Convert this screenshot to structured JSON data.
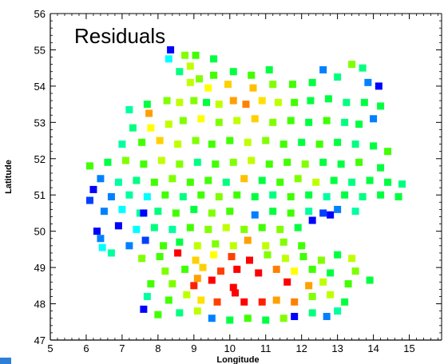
{
  "chart_data": {
    "type": "scatter",
    "title": "Residuals",
    "xlabel": "Longitude",
    "ylabel": "Latitude",
    "xlim": [
      5,
      15.9
    ],
    "ylim": [
      47,
      56
    ],
    "xticks": [
      5,
      6,
      7,
      8,
      9,
      10,
      11,
      12,
      13,
      14,
      15
    ],
    "yticks": [
      47,
      48,
      49,
      50,
      51,
      52,
      53,
      54,
      55,
      56
    ],
    "marker": "square",
    "colormap": "jet (blue = low, red = high)",
    "grid": false,
    "points": [
      {
        "x": 8.35,
        "y": 55.0,
        "color": "#0000ff"
      },
      {
        "x": 8.3,
        "y": 54.75,
        "color": "#00ffff"
      },
      {
        "x": 8.75,
        "y": 54.85,
        "color": "#80ff00"
      },
      {
        "x": 9.05,
        "y": 54.85,
        "color": "#40ff00"
      },
      {
        "x": 9.55,
        "y": 54.75,
        "color": "#00ff40"
      },
      {
        "x": 8.9,
        "y": 54.55,
        "color": "#c0ff00"
      },
      {
        "x": 8.6,
        "y": 54.4,
        "color": "#00ff80"
      },
      {
        "x": 9.15,
        "y": 54.2,
        "color": "#80ff00"
      },
      {
        "x": 9.55,
        "y": 54.3,
        "color": "#40ff00"
      },
      {
        "x": 10.1,
        "y": 54.4,
        "color": "#00ff40"
      },
      {
        "x": 10.6,
        "y": 54.3,
        "color": "#40ff00"
      },
      {
        "x": 11.1,
        "y": 54.45,
        "color": "#00ff40"
      },
      {
        "x": 8.9,
        "y": 54.1,
        "color": "#c0ff00"
      },
      {
        "x": 9.4,
        "y": 53.95,
        "color": "#ffff00"
      },
      {
        "x": 9.95,
        "y": 54.05,
        "color": "#ffd000"
      },
      {
        "x": 10.65,
        "y": 53.95,
        "color": "#ffc000"
      },
      {
        "x": 11.2,
        "y": 54.05,
        "color": "#80ff00"
      },
      {
        "x": 11.75,
        "y": 54.05,
        "color": "#40ff00"
      },
      {
        "x": 12.3,
        "y": 54.1,
        "color": "#00ff40"
      },
      {
        "x": 12.6,
        "y": 54.45,
        "color": "#0080ff"
      },
      {
        "x": 13.0,
        "y": 54.25,
        "color": "#00ff80"
      },
      {
        "x": 13.4,
        "y": 54.6,
        "color": "#80ff00"
      },
      {
        "x": 13.7,
        "y": 54.5,
        "color": "#00ff80"
      },
      {
        "x": 13.85,
        "y": 54.1,
        "color": "#0080ff"
      },
      {
        "x": 14.15,
        "y": 54.0,
        "color": "#0000ff"
      },
      {
        "x": 7.7,
        "y": 53.5,
        "color": "#00ff40"
      },
      {
        "x": 7.2,
        "y": 53.35,
        "color": "#00ffa0"
      },
      {
        "x": 7.75,
        "y": 53.25,
        "color": "#ffa000"
      },
      {
        "x": 8.25,
        "y": 53.6,
        "color": "#80ff00"
      },
      {
        "x": 8.6,
        "y": 53.55,
        "color": "#c0ff00"
      },
      {
        "x": 9.0,
        "y": 53.6,
        "color": "#80ff00"
      },
      {
        "x": 9.35,
        "y": 53.55,
        "color": "#00ff40"
      },
      {
        "x": 9.7,
        "y": 53.5,
        "color": "#c0ff00"
      },
      {
        "x": 10.1,
        "y": 53.6,
        "color": "#ffa000"
      },
      {
        "x": 10.45,
        "y": 53.5,
        "color": "#ff8000"
      },
      {
        "x": 10.9,
        "y": 53.6,
        "color": "#ffe000"
      },
      {
        "x": 11.35,
        "y": 53.55,
        "color": "#c0ff00"
      },
      {
        "x": 11.8,
        "y": 53.55,
        "color": "#40ff00"
      },
      {
        "x": 12.25,
        "y": 53.6,
        "color": "#00ff40"
      },
      {
        "x": 12.75,
        "y": 53.65,
        "color": "#00ff40"
      },
      {
        "x": 13.25,
        "y": 53.55,
        "color": "#00ff80"
      },
      {
        "x": 13.75,
        "y": 53.55,
        "color": "#00ff40"
      },
      {
        "x": 14.2,
        "y": 53.45,
        "color": "#00ff40"
      },
      {
        "x": 14.0,
        "y": 53.1,
        "color": "#0080ff"
      },
      {
        "x": 7.3,
        "y": 52.85,
        "color": "#00ff80"
      },
      {
        "x": 7.8,
        "y": 52.85,
        "color": "#ffff00"
      },
      {
        "x": 8.3,
        "y": 52.95,
        "color": "#c0ff00"
      },
      {
        "x": 8.7,
        "y": 53.05,
        "color": "#80ff00"
      },
      {
        "x": 9.2,
        "y": 53.1,
        "color": "#ffff00"
      },
      {
        "x": 9.7,
        "y": 53.0,
        "color": "#80ff00"
      },
      {
        "x": 10.2,
        "y": 53.05,
        "color": "#c0ff00"
      },
      {
        "x": 10.7,
        "y": 53.1,
        "color": "#ffd000"
      },
      {
        "x": 11.2,
        "y": 53.0,
        "color": "#80ff00"
      },
      {
        "x": 11.7,
        "y": 53.05,
        "color": "#40ff00"
      },
      {
        "x": 12.2,
        "y": 53.0,
        "color": "#00ff40"
      },
      {
        "x": 12.7,
        "y": 53.05,
        "color": "#40ff00"
      },
      {
        "x": 13.2,
        "y": 53.0,
        "color": "#00ff80"
      },
      {
        "x": 13.6,
        "y": 52.95,
        "color": "#00ff40"
      },
      {
        "x": 7.0,
        "y": 52.4,
        "color": "#00ffa0"
      },
      {
        "x": 7.55,
        "y": 52.45,
        "color": "#40ff00"
      },
      {
        "x": 8.05,
        "y": 52.5,
        "color": "#ffd000"
      },
      {
        "x": 8.55,
        "y": 52.4,
        "color": "#c0ff00"
      },
      {
        "x": 9.05,
        "y": 52.5,
        "color": "#80ff00"
      },
      {
        "x": 9.5,
        "y": 52.4,
        "color": "#40ff00"
      },
      {
        "x": 10.0,
        "y": 52.5,
        "color": "#40ff00"
      },
      {
        "x": 10.5,
        "y": 52.45,
        "color": "#c0ff00"
      },
      {
        "x": 11.0,
        "y": 52.5,
        "color": "#80ff00"
      },
      {
        "x": 11.5,
        "y": 52.4,
        "color": "#40ff00"
      },
      {
        "x": 12.0,
        "y": 52.45,
        "color": "#00ff40"
      },
      {
        "x": 12.5,
        "y": 52.4,
        "color": "#40ff00"
      },
      {
        "x": 13.0,
        "y": 52.45,
        "color": "#00ff40"
      },
      {
        "x": 13.5,
        "y": 52.4,
        "color": "#00ff80"
      },
      {
        "x": 14.0,
        "y": 52.35,
        "color": "#00ff40"
      },
      {
        "x": 14.4,
        "y": 52.2,
        "color": "#40ff00"
      },
      {
        "x": 6.1,
        "y": 51.8,
        "color": "#40ff00"
      },
      {
        "x": 6.6,
        "y": 51.9,
        "color": "#00ff40"
      },
      {
        "x": 7.1,
        "y": 51.95,
        "color": "#80ff00"
      },
      {
        "x": 7.6,
        "y": 51.85,
        "color": "#40ff00"
      },
      {
        "x": 8.1,
        "y": 51.95,
        "color": "#c0ff00"
      },
      {
        "x": 8.6,
        "y": 51.85,
        "color": "#80ff00"
      },
      {
        "x": 9.1,
        "y": 51.9,
        "color": "#00ff80"
      },
      {
        "x": 9.6,
        "y": 51.85,
        "color": "#40ff00"
      },
      {
        "x": 10.1,
        "y": 51.9,
        "color": "#80ff00"
      },
      {
        "x": 10.6,
        "y": 51.95,
        "color": "#c0ff00"
      },
      {
        "x": 11.1,
        "y": 51.85,
        "color": "#40ff00"
      },
      {
        "x": 11.6,
        "y": 51.9,
        "color": "#40ff00"
      },
      {
        "x": 12.1,
        "y": 51.85,
        "color": "#80ff00"
      },
      {
        "x": 12.6,
        "y": 51.9,
        "color": "#00ff40"
      },
      {
        "x": 13.1,
        "y": 51.85,
        "color": "#00ff40"
      },
      {
        "x": 13.6,
        "y": 51.9,
        "color": "#40ff00"
      },
      {
        "x": 14.2,
        "y": 51.75,
        "color": "#00ff40"
      },
      {
        "x": 6.4,
        "y": 51.45,
        "color": "#0080ff"
      },
      {
        "x": 6.9,
        "y": 51.35,
        "color": "#00ffa0"
      },
      {
        "x": 7.4,
        "y": 51.4,
        "color": "#00ff80"
      },
      {
        "x": 7.9,
        "y": 51.35,
        "color": "#40ff00"
      },
      {
        "x": 8.4,
        "y": 51.45,
        "color": "#80ff00"
      },
      {
        "x": 8.9,
        "y": 51.35,
        "color": "#40ff00"
      },
      {
        "x": 9.4,
        "y": 51.4,
        "color": "#40ff00"
      },
      {
        "x": 9.9,
        "y": 51.35,
        "color": "#00ff80"
      },
      {
        "x": 10.4,
        "y": 51.45,
        "color": "#ffc000"
      },
      {
        "x": 10.9,
        "y": 51.4,
        "color": "#00ff40"
      },
      {
        "x": 11.4,
        "y": 51.35,
        "color": "#40ff00"
      },
      {
        "x": 11.9,
        "y": 51.45,
        "color": "#80ff00"
      },
      {
        "x": 12.4,
        "y": 51.35,
        "color": "#c0ff00"
      },
      {
        "x": 12.9,
        "y": 51.4,
        "color": "#00ff40"
      },
      {
        "x": 13.4,
        "y": 51.35,
        "color": "#00ff80"
      },
      {
        "x": 13.9,
        "y": 51.4,
        "color": "#00ff40"
      },
      {
        "x": 14.4,
        "y": 51.35,
        "color": "#00ff40"
      },
      {
        "x": 14.8,
        "y": 51.3,
        "color": "#00ff80"
      },
      {
        "x": 6.2,
        "y": 51.15,
        "color": "#0000ff"
      },
      {
        "x": 6.1,
        "y": 50.85,
        "color": "#0040ff"
      },
      {
        "x": 6.7,
        "y": 50.95,
        "color": "#0080ff"
      },
      {
        "x": 7.2,
        "y": 51.0,
        "color": "#00ffa0"
      },
      {
        "x": 7.7,
        "y": 50.95,
        "color": "#00ffff"
      },
      {
        "x": 8.2,
        "y": 51.0,
        "color": "#40ff00"
      },
      {
        "x": 8.7,
        "y": 50.95,
        "color": "#00ff80"
      },
      {
        "x": 9.2,
        "y": 51.0,
        "color": "#40ff00"
      },
      {
        "x": 9.7,
        "y": 50.95,
        "color": "#80ff00"
      },
      {
        "x": 10.2,
        "y": 51.0,
        "color": "#40ff00"
      },
      {
        "x": 10.7,
        "y": 50.95,
        "color": "#00ff40"
      },
      {
        "x": 11.2,
        "y": 51.0,
        "color": "#00ff80"
      },
      {
        "x": 11.7,
        "y": 50.95,
        "color": "#40ff00"
      },
      {
        "x": 12.2,
        "y": 51.0,
        "color": "#00ff40"
      },
      {
        "x": 12.7,
        "y": 50.95,
        "color": "#00ffa0"
      },
      {
        "x": 13.2,
        "y": 51.0,
        "color": "#00ff40"
      },
      {
        "x": 13.7,
        "y": 50.95,
        "color": "#00ff80"
      },
      {
        "x": 14.2,
        "y": 51.0,
        "color": "#00ff40"
      },
      {
        "x": 14.7,
        "y": 50.95,
        "color": "#00ff40"
      },
      {
        "x": 6.5,
        "y": 50.55,
        "color": "#0080ff"
      },
      {
        "x": 7.0,
        "y": 50.6,
        "color": "#00ffff"
      },
      {
        "x": 7.5,
        "y": 50.5,
        "color": "#00ffa0"
      },
      {
        "x": 8.0,
        "y": 50.55,
        "color": "#00ff80"
      },
      {
        "x": 8.5,
        "y": 50.5,
        "color": "#40ff00"
      },
      {
        "x": 9.0,
        "y": 50.6,
        "color": "#00ff40"
      },
      {
        "x": 9.5,
        "y": 50.5,
        "color": "#80ff00"
      },
      {
        "x": 10.0,
        "y": 50.55,
        "color": "#40ff00"
      },
      {
        "x": 10.7,
        "y": 50.45,
        "color": "#0080ff"
      },
      {
        "x": 11.2,
        "y": 50.55,
        "color": "#00ff40"
      },
      {
        "x": 11.7,
        "y": 50.5,
        "color": "#40ff00"
      },
      {
        "x": 12.2,
        "y": 50.55,
        "color": "#00ffa0"
      },
      {
        "x": 12.6,
        "y": 50.5,
        "color": "#0040ff"
      },
      {
        "x": 12.8,
        "y": 50.45,
        "color": "#0000ff"
      },
      {
        "x": 13.0,
        "y": 50.6,
        "color": "#0080ff"
      },
      {
        "x": 13.5,
        "y": 50.55,
        "color": "#00ffa0"
      },
      {
        "x": 7.6,
        "y": 50.5,
        "color": "#0000ff"
      },
      {
        "x": 12.3,
        "y": 50.3,
        "color": "#0000ff"
      },
      {
        "x": 6.3,
        "y": 50.0,
        "color": "#0000ff"
      },
      {
        "x": 6.4,
        "y": 49.8,
        "color": "#0080ff"
      },
      {
        "x": 6.9,
        "y": 50.15,
        "color": "#0000ff"
      },
      {
        "x": 7.4,
        "y": 50.05,
        "color": "#00ffff"
      },
      {
        "x": 7.9,
        "y": 50.1,
        "color": "#00ff80"
      },
      {
        "x": 8.4,
        "y": 50.05,
        "color": "#00ffa0"
      },
      {
        "x": 8.9,
        "y": 50.1,
        "color": "#40ff00"
      },
      {
        "x": 9.4,
        "y": 50.05,
        "color": "#80ff00"
      },
      {
        "x": 9.9,
        "y": 50.1,
        "color": "#c0ff00"
      },
      {
        "x": 10.4,
        "y": 50.05,
        "color": "#80ff00"
      },
      {
        "x": 10.9,
        "y": 50.1,
        "color": "#40ff00"
      },
      {
        "x": 11.4,
        "y": 50.05,
        "color": "#80ff00"
      },
      {
        "x": 11.9,
        "y": 50.1,
        "color": "#00ff40"
      },
      {
        "x": 6.45,
        "y": 49.55,
        "color": "#00ffff"
      },
      {
        "x": 6.7,
        "y": 49.4,
        "color": "#00ffa0"
      },
      {
        "x": 7.2,
        "y": 49.6,
        "color": "#0080ff"
      },
      {
        "x": 7.65,
        "y": 49.75,
        "color": "#0040ff"
      },
      {
        "x": 8.15,
        "y": 49.6,
        "color": "#40ff00"
      },
      {
        "x": 8.6,
        "y": 49.7,
        "color": "#00ff40"
      },
      {
        "x": 9.1,
        "y": 49.6,
        "color": "#c0ff00"
      },
      {
        "x": 9.6,
        "y": 49.65,
        "color": "#80ff00"
      },
      {
        "x": 10.1,
        "y": 49.6,
        "color": "#c0ff00"
      },
      {
        "x": 10.5,
        "y": 49.75,
        "color": "#ffa000"
      },
      {
        "x": 11.0,
        "y": 49.6,
        "color": "#c0ff00"
      },
      {
        "x": 11.5,
        "y": 49.7,
        "color": "#80ff00"
      },
      {
        "x": 12.0,
        "y": 49.6,
        "color": "#40ff00"
      },
      {
        "x": 7.55,
        "y": 49.25,
        "color": "#80ff00"
      },
      {
        "x": 8.05,
        "y": 49.3,
        "color": "#40ff00"
      },
      {
        "x": 8.55,
        "y": 49.4,
        "color": "#ff0000"
      },
      {
        "x": 9.05,
        "y": 49.2,
        "color": "#ffd000"
      },
      {
        "x": 9.55,
        "y": 49.35,
        "color": "#ffff00"
      },
      {
        "x": 10.05,
        "y": 49.3,
        "color": "#ff4000"
      },
      {
        "x": 10.55,
        "y": 49.2,
        "color": "#ff0000"
      },
      {
        "x": 11.05,
        "y": 49.35,
        "color": "#80ff00"
      },
      {
        "x": 11.55,
        "y": 49.25,
        "color": "#c0ff00"
      },
      {
        "x": 12.05,
        "y": 49.3,
        "color": "#40ff00"
      },
      {
        "x": 12.55,
        "y": 49.2,
        "color": "#80ff00"
      },
      {
        "x": 13.0,
        "y": 49.35,
        "color": "#00ff40"
      },
      {
        "x": 13.4,
        "y": 49.25,
        "color": "#c0ff00"
      },
      {
        "x": 8.2,
        "y": 48.9,
        "color": "#80ff00"
      },
      {
        "x": 8.75,
        "y": 48.95,
        "color": "#40ff00"
      },
      {
        "x": 9.25,
        "y": 49.0,
        "color": "#ffd000"
      },
      {
        "x": 9.75,
        "y": 48.9,
        "color": "#ff4000"
      },
      {
        "x": 10.2,
        "y": 48.95,
        "color": "#ff0000"
      },
      {
        "x": 10.8,
        "y": 48.85,
        "color": "#ff0000"
      },
      {
        "x": 11.3,
        "y": 48.95,
        "color": "#ff8000"
      },
      {
        "x": 11.8,
        "y": 48.9,
        "color": "#ffff00"
      },
      {
        "x": 12.3,
        "y": 48.95,
        "color": "#40ff00"
      },
      {
        "x": 12.8,
        "y": 48.85,
        "color": "#00ff40"
      },
      {
        "x": 13.5,
        "y": 48.9,
        "color": "#80ff00"
      },
      {
        "x": 9.1,
        "y": 48.7,
        "color": "#ffa000"
      },
      {
        "x": 9.5,
        "y": 48.65,
        "color": "#ff0000"
      },
      {
        "x": 9.0,
        "y": 48.5,
        "color": "#ff2000"
      },
      {
        "x": 7.8,
        "y": 48.55,
        "color": "#40ff00"
      },
      {
        "x": 8.4,
        "y": 48.55,
        "color": "#80ff00"
      },
      {
        "x": 10.1,
        "y": 48.45,
        "color": "#ff0000"
      },
      {
        "x": 11.6,
        "y": 48.6,
        "color": "#ff0000"
      },
      {
        "x": 12.2,
        "y": 48.5,
        "color": "#ffa000"
      },
      {
        "x": 12.6,
        "y": 48.6,
        "color": "#c0ff00"
      },
      {
        "x": 13.3,
        "y": 48.55,
        "color": "#40ff00"
      },
      {
        "x": 13.9,
        "y": 48.65,
        "color": "#00ff40"
      },
      {
        "x": 7.7,
        "y": 48.2,
        "color": "#00ffa0"
      },
      {
        "x": 8.3,
        "y": 48.1,
        "color": "#40ff00"
      },
      {
        "x": 8.8,
        "y": 48.25,
        "color": "#c0ff00"
      },
      {
        "x": 9.2,
        "y": 48.1,
        "color": "#ffe000"
      },
      {
        "x": 9.65,
        "y": 48.05,
        "color": "#ff4000"
      },
      {
        "x": 10.15,
        "y": 48.3,
        "color": "#ff0000"
      },
      {
        "x": 10.4,
        "y": 48.05,
        "color": "#ff0000"
      },
      {
        "x": 10.9,
        "y": 48.05,
        "color": "#ff2000"
      },
      {
        "x": 11.3,
        "y": 48.1,
        "color": "#ffa000"
      },
      {
        "x": 11.8,
        "y": 48.05,
        "color": "#ff8000"
      },
      {
        "x": 12.3,
        "y": 48.2,
        "color": "#80ff00"
      },
      {
        "x": 12.8,
        "y": 48.25,
        "color": "#c0ff00"
      },
      {
        "x": 13.2,
        "y": 48.05,
        "color": "#00ff40"
      },
      {
        "x": 7.6,
        "y": 47.85,
        "color": "#0000ff"
      },
      {
        "x": 8.0,
        "y": 47.7,
        "color": "#40ff00"
      },
      {
        "x": 8.6,
        "y": 47.75,
        "color": "#00ff80"
      },
      {
        "x": 9.1,
        "y": 47.8,
        "color": "#c0ff00"
      },
      {
        "x": 9.5,
        "y": 47.6,
        "color": "#0080ff"
      },
      {
        "x": 10.0,
        "y": 47.55,
        "color": "#00ff40"
      },
      {
        "x": 10.5,
        "y": 47.6,
        "color": "#40ff00"
      },
      {
        "x": 11.0,
        "y": 47.55,
        "color": "#00ff40"
      },
      {
        "x": 11.5,
        "y": 47.6,
        "color": "#80ff00"
      },
      {
        "x": 11.8,
        "y": 47.65,
        "color": "#0000ff"
      },
      {
        "x": 12.3,
        "y": 47.75,
        "color": "#00ff80"
      },
      {
        "x": 12.7,
        "y": 47.65,
        "color": "#0080ff"
      },
      {
        "x": 13.0,
        "y": 47.8,
        "color": "#00ffa0"
      }
    ]
  }
}
